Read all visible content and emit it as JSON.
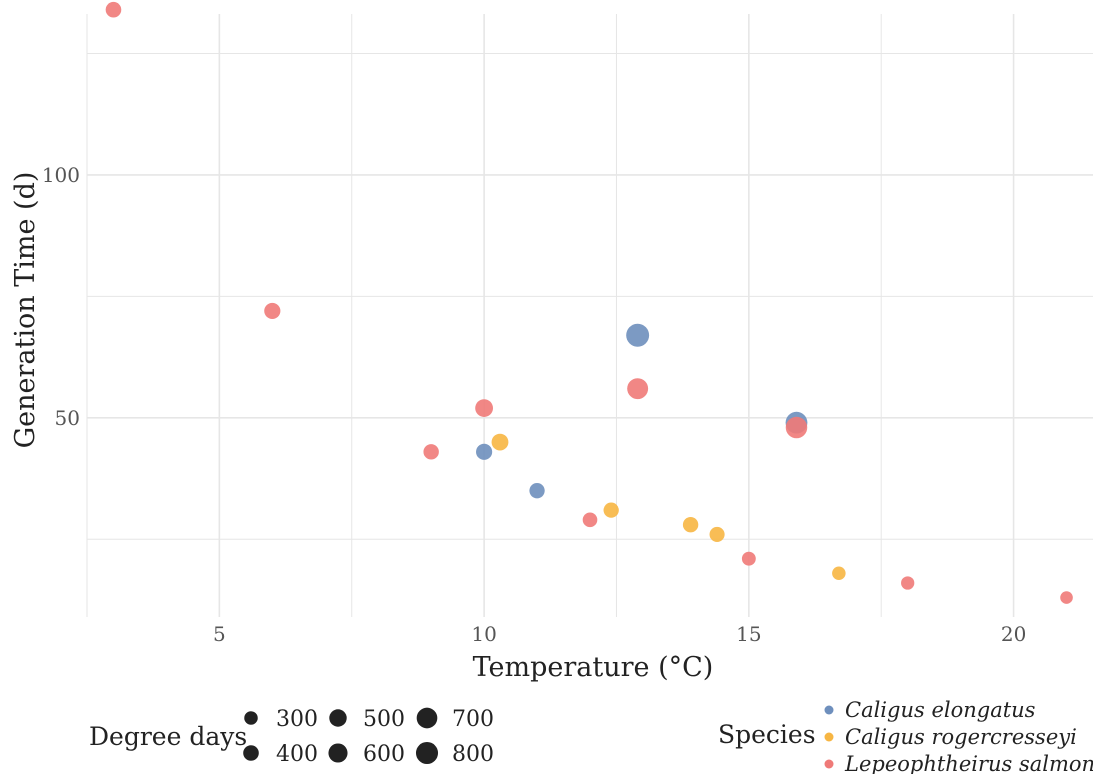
{
  "chart_data": {
    "type": "scatter",
    "title": "",
    "xlabel": "Temperature (°C)",
    "ylabel": "Generation Time (d)",
    "xlim": [
      2.5,
      21.5
    ],
    "ylim": [
      9,
      136
    ],
    "x_ticks": [
      5,
      10,
      15,
      20
    ],
    "x_tick_labels": [
      "5",
      "10",
      "15",
      "20"
    ],
    "y_ticks": [
      50,
      100
    ],
    "y_tick_labels": [
      "50",
      "100"
    ],
    "grid": true,
    "legend_placement": "bottom",
    "size_legend": {
      "title": "Degree days",
      "values": [
        300,
        400,
        500,
        600,
        700,
        800
      ],
      "labels": [
        "300",
        "400",
        "500",
        "600",
        "700",
        "800"
      ]
    },
    "color_legend": {
      "title": "Species",
      "entries": [
        "Caligus elongatus",
        "Caligus rogercresseyi",
        "Lepeophtheirus salmonis"
      ]
    },
    "series": [
      {
        "name": "Caligus elongatus",
        "color": "#6e8fbd",
        "points": [
          {
            "x": 10.0,
            "y": 43,
            "size": 430
          },
          {
            "x": 11.0,
            "y": 35,
            "size": 385
          },
          {
            "x": 12.9,
            "y": 67,
            "size": 865
          },
          {
            "x": 15.9,
            "y": 49,
            "size": 780
          }
        ]
      },
      {
        "name": "Caligus rogercresseyi",
        "color": "#f7b643",
        "points": [
          {
            "x": 10.3,
            "y": 45,
            "size": 465
          },
          {
            "x": 12.4,
            "y": 31,
            "size": 385
          },
          {
            "x": 13.9,
            "y": 28,
            "size": 390
          },
          {
            "x": 14.4,
            "y": 26,
            "size": 375
          },
          {
            "x": 16.7,
            "y": 18,
            "size": 300
          }
        ]
      },
      {
        "name": "Lepeophtheirus salmonis",
        "color": "#ef7a78",
        "points": [
          {
            "x": 3.0,
            "y": 134,
            "size": 400
          },
          {
            "x": 6.0,
            "y": 72,
            "size": 430
          },
          {
            "x": 9.0,
            "y": 43,
            "size": 390
          },
          {
            "x": 10.0,
            "y": 52,
            "size": 520
          },
          {
            "x": 12.0,
            "y": 29,
            "size": 350
          },
          {
            "x": 12.9,
            "y": 56,
            "size": 720
          },
          {
            "x": 15.0,
            "y": 21,
            "size": 315
          },
          {
            "x": 15.9,
            "y": 48,
            "size": 760
          },
          {
            "x": 18.0,
            "y": 16,
            "size": 290
          },
          {
            "x": 21.0,
            "y": 13,
            "size": 260
          }
        ]
      }
    ]
  }
}
